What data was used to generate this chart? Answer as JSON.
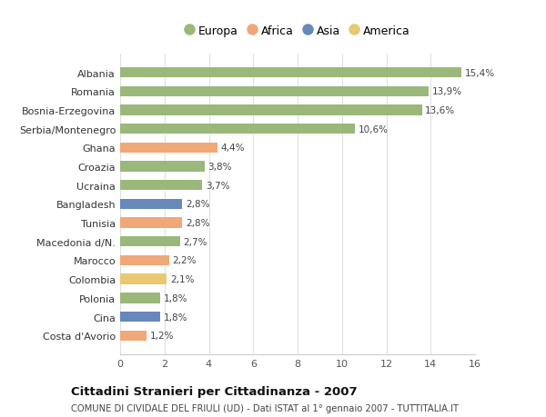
{
  "categories": [
    "Costa d'Avorio",
    "Cina",
    "Polonia",
    "Colombia",
    "Marocco",
    "Macedonia d/N.",
    "Tunisia",
    "Bangladesh",
    "Ucraina",
    "Croazia",
    "Ghana",
    "Serbia/Montenegro",
    "Bosnia-Erzegovina",
    "Romania",
    "Albania"
  ],
  "values": [
    1.2,
    1.8,
    1.8,
    2.1,
    2.2,
    2.7,
    2.8,
    2.8,
    3.7,
    3.8,
    4.4,
    10.6,
    13.6,
    13.9,
    15.4
  ],
  "labels": [
    "1,2%",
    "1,8%",
    "1,8%",
    "2,1%",
    "2,2%",
    "2,7%",
    "2,8%",
    "2,8%",
    "3,7%",
    "3,8%",
    "4,4%",
    "10,6%",
    "13,6%",
    "13,9%",
    "15,4%"
  ],
  "colors": [
    "#f0a878",
    "#6688bb",
    "#9ab87a",
    "#e8c870",
    "#f0a878",
    "#9ab87a",
    "#f0a878",
    "#6688bb",
    "#9ab87a",
    "#9ab87a",
    "#f0a878",
    "#9ab87a",
    "#9ab87a",
    "#9ab87a",
    "#9ab87a"
  ],
  "legend": [
    {
      "label": "Europa",
      "color": "#9ab87a"
    },
    {
      "label": "Africa",
      "color": "#f0a878"
    },
    {
      "label": "Asia",
      "color": "#6688bb"
    },
    {
      "label": "America",
      "color": "#e8c870"
    }
  ],
  "title": "Cittadini Stranieri per Cittadinanza - 2007",
  "subtitle": "COMUNE DI CIVIDALE DEL FRIULI (UD) - Dati ISTAT al 1° gennaio 2007 - TUTTITALIA.IT",
  "xlim": [
    0,
    16
  ],
  "xticks": [
    0,
    2,
    4,
    6,
    8,
    10,
    12,
    14,
    16
  ],
  "background_color": "#ffffff",
  "plot_bg_color": "#ffffff",
  "grid_color": "#e0e0e0",
  "bar_height": 0.55
}
